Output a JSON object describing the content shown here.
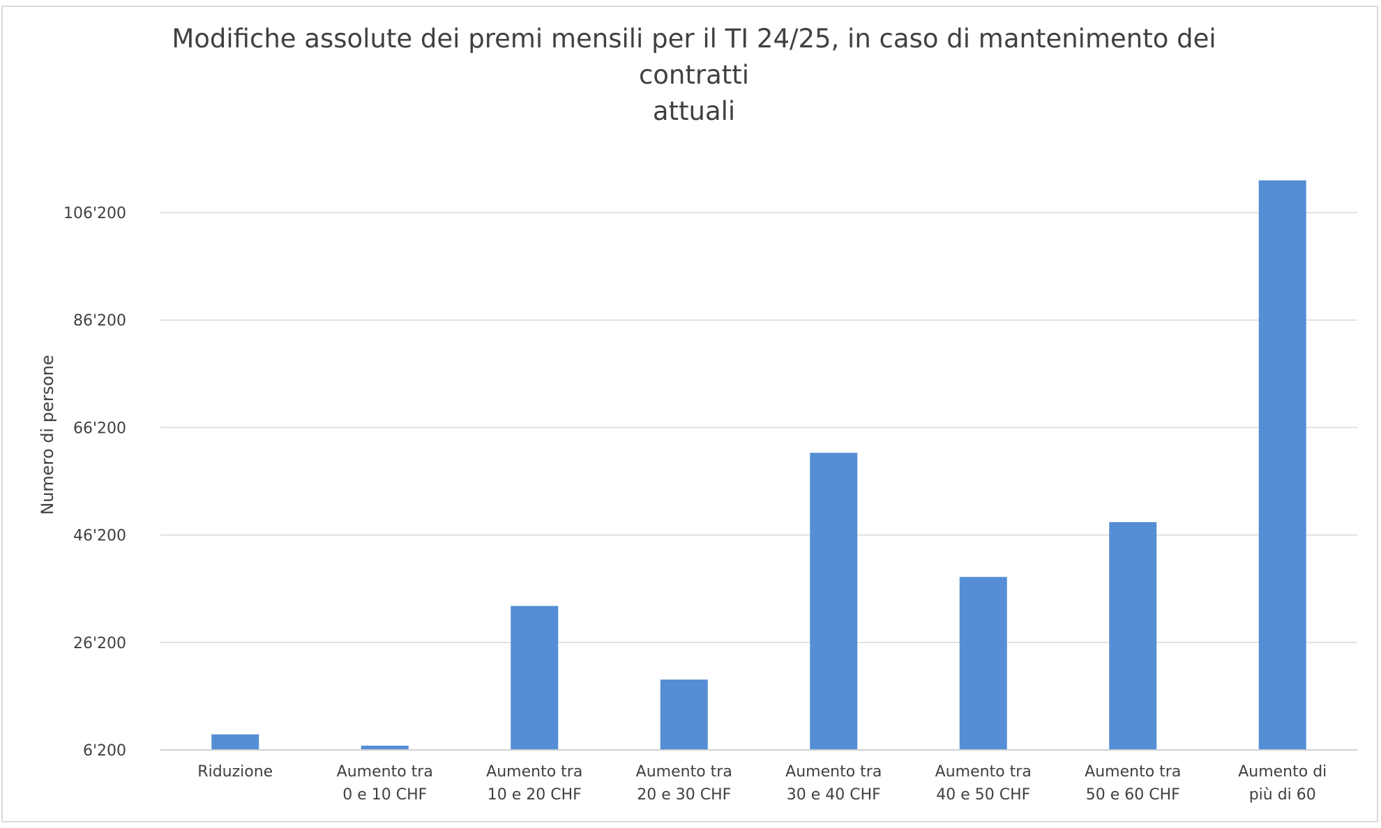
{
  "chart_data": {
    "type": "bar",
    "title_lines": [
      "Modifiche assolute dei premi mensili per il TI 24/25, in caso di mantenimento dei contratti",
      "attuali"
    ],
    "xlabel": "",
    "ylabel": "Numero di persone",
    "categories": [
      [
        "Riduzione"
      ],
      [
        "Aumento tra",
        "0 e 10 CHF"
      ],
      [
        "Aumento tra",
        "10 e 20 CHF"
      ],
      [
        "Aumento tra",
        "20 e 30 CHF"
      ],
      [
        "Aumento tra",
        "30 e 40 CHF"
      ],
      [
        "Aumento tra",
        "40 e 50 CHF"
      ],
      [
        "Aumento tra",
        "50 e 60 CHF"
      ],
      [
        "Aumento di",
        "più di 60"
      ]
    ],
    "values": [
      9100,
      7000,
      33000,
      19300,
      61500,
      38400,
      48600,
      112200
    ],
    "ylim": [
      6200,
      106200
    ],
    "yticks": [
      6200,
      26200,
      46200,
      66200,
      86200,
      106200
    ],
    "ytick_labels": [
      "6'200",
      "26'200",
      "46'200",
      "66'200",
      "86'200",
      "106'200"
    ],
    "bar_color": "#558ed5",
    "grid": true
  }
}
